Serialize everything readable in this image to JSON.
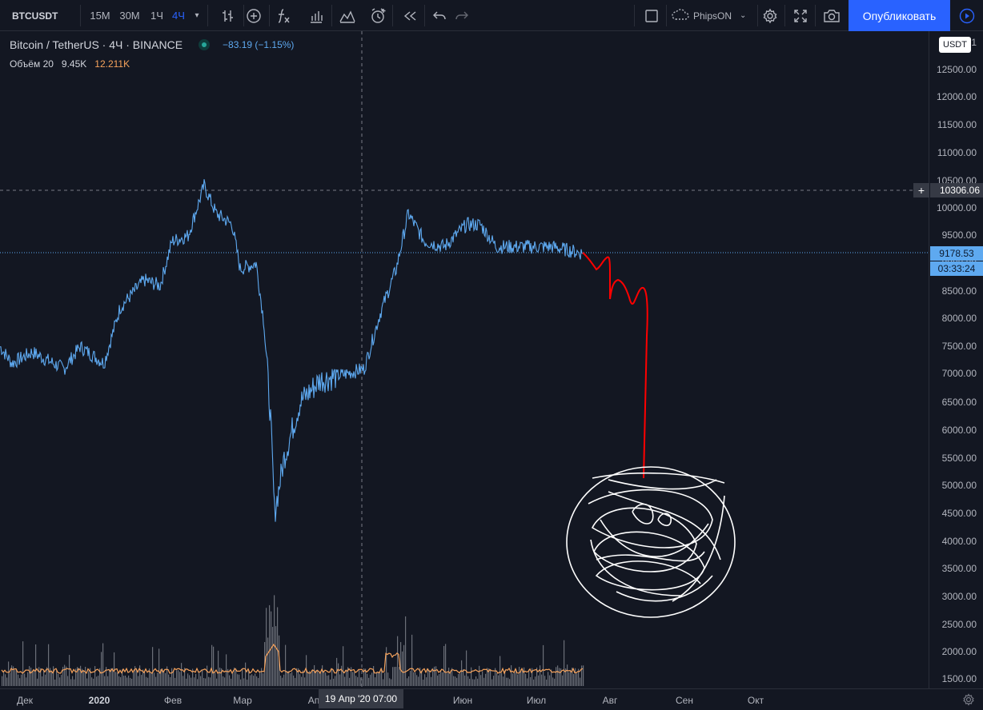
{
  "toolbar": {
    "symbol": "BTCUSDT",
    "timeframes": [
      "15M",
      "30M",
      "1Ч",
      "4Ч"
    ],
    "active_timeframe": "4Ч",
    "icons": [
      "bar-style-icon",
      "compare-add-icon",
      "indicators-icon",
      "financials-icon",
      "templates-icon",
      "alert-icon",
      "replay-icon",
      "undo-icon",
      "redo-icon",
      "layout-icon",
      "cloud-icon",
      "settings-icon",
      "fullscreen-icon",
      "screenshot-icon",
      "play-icon"
    ],
    "account_name": "PhipsON",
    "publish_label": "Опубликовать"
  },
  "legend": {
    "title": "Bitcoin / TetherUS · 4Ч · BINANCE",
    "change": "−83.19 (−1.15%)",
    "volume_label": "Объём 20",
    "volume_value": "9.45K",
    "volume_ma": "12.211K"
  },
  "price_axis": {
    "currency": "USDT",
    "ticks": [
      "1",
      "12500.00",
      "12000.00",
      "11500.00",
      "11000.00",
      "10500.00",
      "10000.00",
      "9500.00",
      "9000.00",
      "8500.00",
      "8000.00",
      "7500.00",
      "7000.00",
      "6500.00",
      "6000.00",
      "5500.00",
      "5000.00",
      "4500.00",
      "4000.00",
      "3500.00",
      "3000.00",
      "2500.00",
      "2000.00",
      "1500.00"
    ],
    "crosshair_price": "10306.06",
    "last_price": "9178.53",
    "countdown": "03:33:24"
  },
  "time_axis": {
    "ticks": [
      {
        "label": "Дек",
        "bold": false
      },
      {
        "label": "2020",
        "bold": true
      },
      {
        "label": "Фев",
        "bold": false
      },
      {
        "label": "Мар",
        "bold": false
      },
      {
        "label": "Ап",
        "bold": false
      },
      {
        "label": "Июн",
        "bold": false
      },
      {
        "label": "Июл",
        "bold": false
      },
      {
        "label": "Авг",
        "bold": false
      },
      {
        "label": "Сен",
        "bold": false
      },
      {
        "label": "Окт",
        "bold": false
      }
    ],
    "crosshair_time": "19 Апр '20   07:00"
  },
  "chart_data": {
    "type": "line",
    "series_color": "#5ea9f0",
    "drawing_color": "#ff0000",
    "volume_color": "#6b6f78",
    "volume_ma_color": "#f7a35c",
    "ylim": [
      1500,
      12500
    ],
    "x": [
      "Дек",
      "2020",
      "Фев",
      "Мар",
      "Ап",
      "Июн",
      "Июл"
    ],
    "price_series": [
      {
        "x": "Дек",
        "y": 7400
      },
      {
        "x": "2020",
        "y": 7200
      },
      {
        "x": "Фев",
        "y": 9500
      },
      {
        "x": "Фев",
        "y": 10450
      },
      {
        "x": "Мар",
        "y": 8800
      },
      {
        "x": "Мар",
        "y": 4500
      },
      {
        "x": "Ап",
        "y": 6900
      },
      {
        "x": "Июн",
        "y": 10000
      },
      {
        "x": "Июл",
        "y": 9180
      }
    ],
    "drawn_projection": [
      9150,
      8950,
      9150,
      8350,
      8700,
      8200,
      8500,
      5100
    ]
  }
}
